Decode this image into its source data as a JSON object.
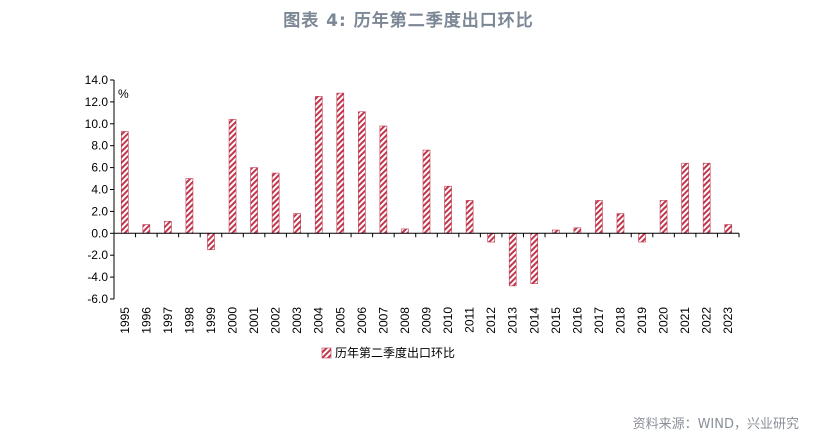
{
  "page_title": "图表 4:  历年第二季度出口环比",
  "source_note": "资料来源：WIND，兴业研究",
  "chart_data": {
    "type": "bar",
    "title": "图表 4:  历年第二季度出口环比",
    "ylabel": "%",
    "xlabel": "",
    "ylim": [
      -6.0,
      14.0
    ],
    "y_ticks": [
      "14.0",
      "12.0",
      "10.0",
      "8.0",
      "6.0",
      "4.0",
      "2.0",
      "0.0",
      "-2.0",
      "-4.0",
      "-6.0"
    ],
    "categories": [
      "1995",
      "1996",
      "1997",
      "1998",
      "1999",
      "2000",
      "2001",
      "2002",
      "2003",
      "2004",
      "2005",
      "2006",
      "2007",
      "2008",
      "2009",
      "2010",
      "2011",
      "2012",
      "2013",
      "2014",
      "2015",
      "2016",
      "2017",
      "2018",
      "2019",
      "2020",
      "2021",
      "2022",
      "2023"
    ],
    "series": [
      {
        "name": "历年第二季度出口环比",
        "values": [
          9.3,
          0.8,
          1.1,
          5.0,
          -1.5,
          10.4,
          6.0,
          5.5,
          1.8,
          12.5,
          12.8,
          11.1,
          9.8,
          0.4,
          7.6,
          4.3,
          3.0,
          -0.8,
          -4.8,
          -4.6,
          0.3,
          0.5,
          3.0,
          1.8,
          -0.8,
          3.0,
          6.4,
          6.4,
          0.8
        ],
        "color": "#c0374d"
      }
    ],
    "legend": [
      "历年第二季度出口环比"
    ],
    "legend_position": "bottom-center",
    "grid": false
  }
}
